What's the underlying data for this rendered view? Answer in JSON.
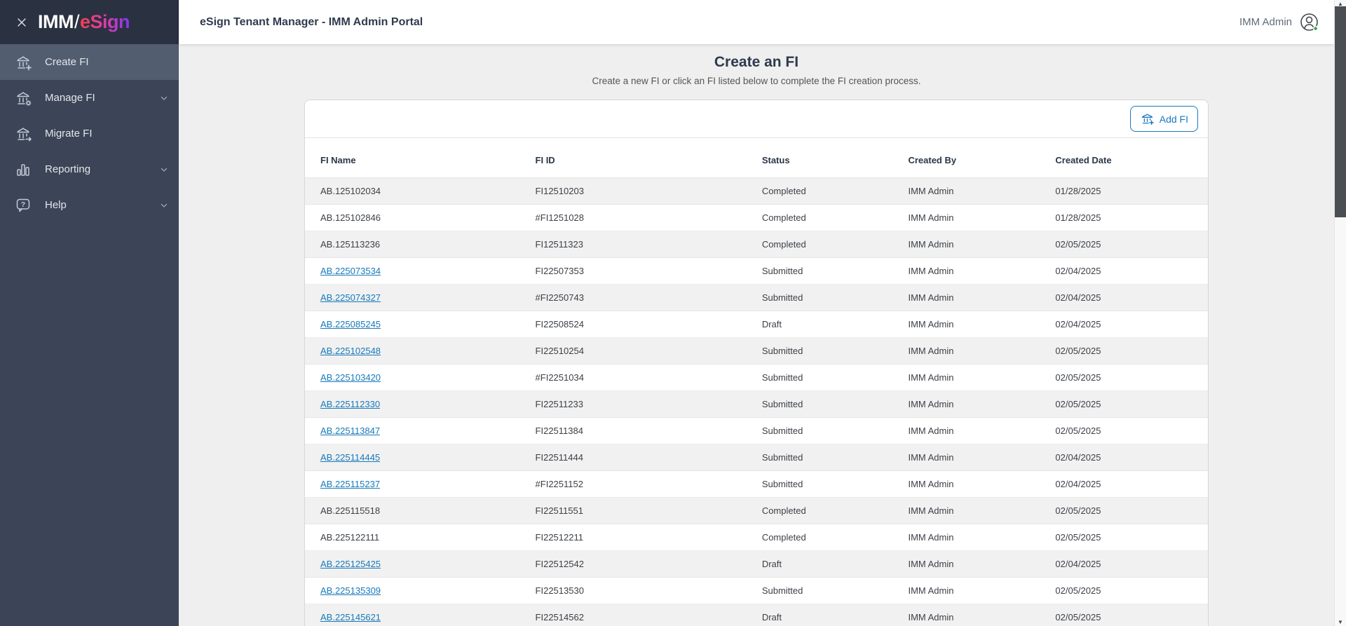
{
  "sidebar": {
    "logo": {
      "imm": "IMM",
      "slash": "/",
      "esign": "eSign"
    },
    "items": [
      {
        "label": "Create FI",
        "icon": "bank-plus-icon",
        "active": true,
        "chevron": false
      },
      {
        "label": "Manage FI",
        "icon": "bank-gear-icon",
        "active": false,
        "chevron": true
      },
      {
        "label": "Migrate FI",
        "icon": "bank-arrow-icon",
        "active": false,
        "chevron": false
      },
      {
        "label": "Reporting",
        "icon": "bar-chart-icon",
        "active": false,
        "chevron": true
      },
      {
        "label": "Help",
        "icon": "help-bubble-icon",
        "active": false,
        "chevron": true
      }
    ]
  },
  "header": {
    "title": "eSign Tenant Manager - IMM Admin Portal",
    "user_name": "IMM Admin"
  },
  "page": {
    "title": "Create an FI",
    "subtitle": "Create a new FI or click an FI listed below to complete the FI creation process."
  },
  "toolbar": {
    "add_fi_label": "Add FI"
  },
  "table": {
    "columns": [
      "FI Name",
      "FI ID",
      "Status",
      "Created By",
      "Created Date"
    ],
    "rows": [
      {
        "name": "AB.125102034",
        "id": "FI12510203",
        "status": "Completed",
        "created_by": "IMM Admin",
        "created_date": "01/28/2025",
        "link": false
      },
      {
        "name": "AB.125102846",
        "id": "#FI1251028",
        "status": "Completed",
        "created_by": "IMM Admin",
        "created_date": "01/28/2025",
        "link": false
      },
      {
        "name": "AB.125113236",
        "id": "FI12511323",
        "status": "Completed",
        "created_by": "IMM Admin",
        "created_date": "02/05/2025",
        "link": false
      },
      {
        "name": "AB.225073534",
        "id": "FI22507353",
        "status": "Submitted",
        "created_by": "IMM Admin",
        "created_date": "02/04/2025",
        "link": true
      },
      {
        "name": "AB.225074327",
        "id": "#FI2250743",
        "status": "Submitted",
        "created_by": "IMM Admin",
        "created_date": "02/04/2025",
        "link": true
      },
      {
        "name": "AB.225085245",
        "id": "FI22508524",
        "status": "Draft",
        "created_by": "IMM Admin",
        "created_date": "02/04/2025",
        "link": true
      },
      {
        "name": "AB.225102548",
        "id": "FI22510254",
        "status": "Submitted",
        "created_by": "IMM Admin",
        "created_date": "02/05/2025",
        "link": true
      },
      {
        "name": "AB.225103420",
        "id": "#FI2251034",
        "status": "Submitted",
        "created_by": "IMM Admin",
        "created_date": "02/05/2025",
        "link": true
      },
      {
        "name": "AB.225112330",
        "id": "FI22511233",
        "status": "Submitted",
        "created_by": "IMM Admin",
        "created_date": "02/05/2025",
        "link": true
      },
      {
        "name": "AB.225113847",
        "id": "FI22511384",
        "status": "Submitted",
        "created_by": "IMM Admin",
        "created_date": "02/05/2025",
        "link": true
      },
      {
        "name": "AB.225114445",
        "id": "FI22511444",
        "status": "Submitted",
        "created_by": "IMM Admin",
        "created_date": "02/04/2025",
        "link": true
      },
      {
        "name": "AB.225115237",
        "id": "#FI2251152",
        "status": "Submitted",
        "created_by": "IMM Admin",
        "created_date": "02/04/2025",
        "link": true
      },
      {
        "name": "AB.225115518",
        "id": "FI22511551",
        "status": "Completed",
        "created_by": "IMM Admin",
        "created_date": "02/05/2025",
        "link": false
      },
      {
        "name": "AB.225122111",
        "id": "FI22512211",
        "status": "Completed",
        "created_by": "IMM Admin",
        "created_date": "02/05/2025",
        "link": false
      },
      {
        "name": "AB.225125425",
        "id": "FI22512542",
        "status": "Draft",
        "created_by": "IMM Admin",
        "created_date": "02/04/2025",
        "link": true
      },
      {
        "name": "AB.225135309",
        "id": "FI22513530",
        "status": "Submitted",
        "created_by": "IMM Admin",
        "created_date": "02/05/2025",
        "link": true
      },
      {
        "name": "AB.225145621",
        "id": "FI22514562",
        "status": "Draft",
        "created_by": "IMM Admin",
        "created_date": "02/05/2025",
        "link": true
      }
    ]
  },
  "colors": {
    "accent_blue": "#1878BE",
    "link_blue": "#1779BA",
    "presence_green": "#34A853",
    "sidebar_bg": "#3C4557",
    "sidebar_active_bg": "#525D70",
    "logo_bar_bg": "#2A3140"
  }
}
